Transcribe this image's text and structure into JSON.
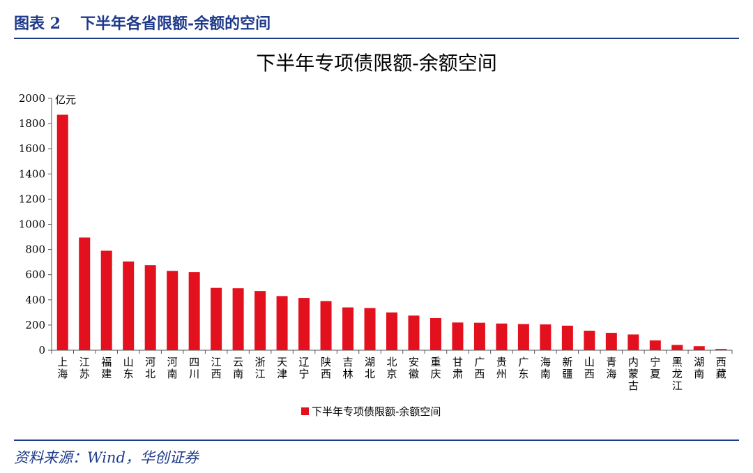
{
  "figure": {
    "label": "图表 2",
    "title": "下半年各省限额-余额的空间",
    "source": "资料来源：Wind，华创证券"
  },
  "colors": {
    "bar": "#e3101e",
    "axis": "#555555",
    "heading": "#1f3a8a"
  },
  "chart_data": {
    "type": "bar",
    "title": "下半年专项债限额-余额空间",
    "unit_label": "亿元",
    "xlabel": "",
    "ylabel": "",
    "ylim": [
      0,
      2000
    ],
    "yticks": [
      0,
      200,
      400,
      600,
      800,
      1000,
      1200,
      1400,
      1600,
      1800,
      2000
    ],
    "legend": "bottom-center",
    "series": [
      {
        "name": "下半年专项债限额-余额空间",
        "values": [
          1870,
          895,
          790,
          705,
          675,
          630,
          620,
          495,
          492,
          470,
          430,
          415,
          390,
          340,
          335,
          300,
          275,
          255,
          220,
          218,
          212,
          208,
          205,
          195,
          155,
          138,
          125,
          78,
          42,
          32,
          10
        ]
      }
    ],
    "categories": [
      "上海",
      "江苏",
      "福建",
      "山东",
      "河北",
      "河南",
      "四川",
      "江西",
      "云南",
      "浙江",
      "天津",
      "辽宁",
      "陕西",
      "吉林",
      "湖北",
      "北京",
      "安徽",
      "重庆",
      "甘肃",
      "广西",
      "贵州",
      "广东",
      "海南",
      "新疆",
      "山西",
      "青海",
      "内蒙古",
      "宁夏",
      "黑龙江",
      "湖南",
      "西藏"
    ]
  }
}
